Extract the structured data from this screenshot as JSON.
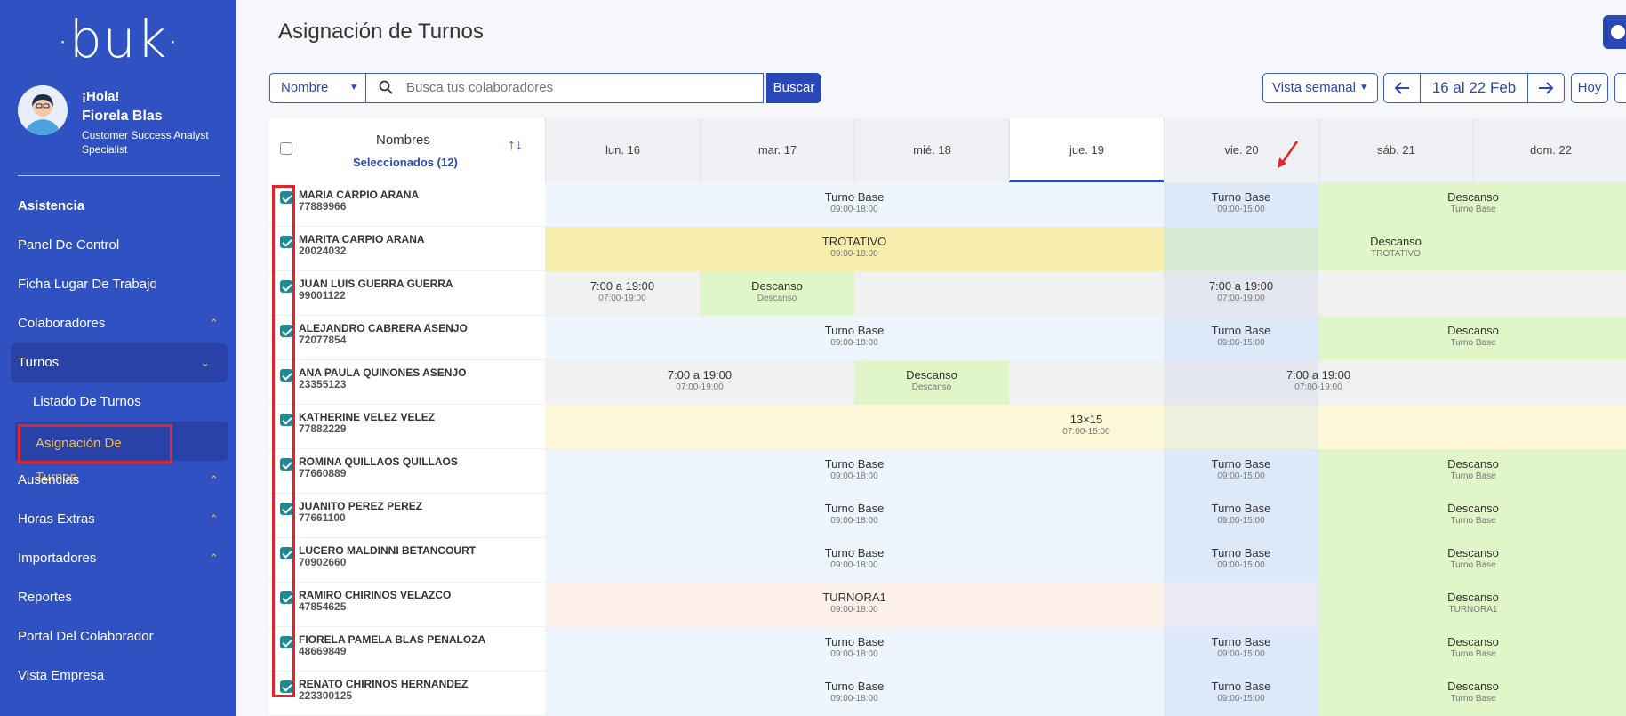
{
  "sidebar": {
    "logo": "buk",
    "greeting": "¡Hola!",
    "user_name": "Fiorela Blas",
    "user_role": "Customer Success Analyst Specialist",
    "items": [
      {
        "label": "Asistencia"
      },
      {
        "label": "Panel De Control"
      },
      {
        "label": "Ficha Lugar De Trabajo"
      },
      {
        "label": "Colaboradores"
      },
      {
        "label": "Turnos"
      },
      {
        "label": "Listado De Turnos"
      },
      {
        "label": "Asignación De Turnos"
      },
      {
        "label": "Ausencias"
      },
      {
        "label": "Horas Extras"
      },
      {
        "label": "Importadores"
      },
      {
        "label": "Reportes"
      },
      {
        "label": "Portal Del Colaborador"
      },
      {
        "label": "Vista Empresa"
      }
    ]
  },
  "header": {
    "title": "Asignación de Turnos"
  },
  "toolbar": {
    "filter_select": "Nombre",
    "search_placeholder": "Busca tus colaboradores",
    "search_button": "Buscar",
    "view_select": "Vista semanal",
    "date_range": "16 al 22 Feb",
    "today_button": "Hoy"
  },
  "grid": {
    "names_header": "Nombres",
    "selected_label": "Seleccionados (12)",
    "sort_icon": "↑↓",
    "days": [
      "lun. 16",
      "mar. 17",
      "mié. 18",
      "jue. 19",
      "vie. 20",
      "sáb. 21",
      "dom. 22"
    ],
    "today": "jue. 19",
    "rows": [
      {
        "name": "MARIA CARPIO ARANA",
        "id": "77889966",
        "blocks": [
          {
            "from": 0,
            "span": 4,
            "label": "Turno Base",
            "sub": "09:00-18:00",
            "color": "#eef5fd"
          },
          {
            "from": 4,
            "span": 1,
            "label": "Turno Base",
            "sub": "09:00-15:00",
            "color": "#dde9f9"
          },
          {
            "from": 5,
            "span": 2,
            "label": "Descanso",
            "sub": "Turno Base",
            "color": "#e0f6c8"
          }
        ]
      },
      {
        "name": "MARITA CARPIO ARANA",
        "id": "20024032",
        "blocks": [
          {
            "from": 0,
            "span": 4,
            "label": "TROTATIVO",
            "sub": "09:00-18:00",
            "color": "#f7eeae"
          },
          {
            "from": 4,
            "span": 1,
            "label": "",
            "sub": "",
            "color": "#d6ecd2"
          },
          {
            "from": 5,
            "span": 1,
            "label": "Descanso",
            "sub": "TROTATIVO",
            "color": "#e0f6c8"
          },
          {
            "from": 6,
            "span": 1,
            "label": "",
            "sub": "",
            "color": "#e0f6c8"
          }
        ]
      },
      {
        "name": "JUAN LUIS GUERRA GUERRA",
        "id": "99001122",
        "blocks": [
          {
            "from": 0,
            "span": 1,
            "label": "7:00 a 19:00",
            "sub": "07:00-19:00",
            "color": "#f1f1f1"
          },
          {
            "from": 1,
            "span": 1,
            "label": "Descanso",
            "sub": "Descanso",
            "color": "#e0f6c8"
          },
          {
            "from": 2,
            "span": 2,
            "label": "",
            "sub": "",
            "color": "#f1f1f1"
          },
          {
            "from": 4,
            "span": 1,
            "label": "7:00 a 19:00",
            "sub": "07:00-19:00",
            "color": "#e5e7ee"
          },
          {
            "from": 5,
            "span": 2,
            "label": "",
            "sub": "",
            "color": "#f1f1f1"
          }
        ]
      },
      {
        "name": "ALEJANDRO CABRERA ASENJO",
        "id": "72077854",
        "blocks": [
          {
            "from": 0,
            "span": 4,
            "label": "Turno Base",
            "sub": "09:00-18:00",
            "color": "#eef5fd"
          },
          {
            "from": 4,
            "span": 1,
            "label": "Turno Base",
            "sub": "09:00-15:00",
            "color": "#dde9f9"
          },
          {
            "from": 5,
            "span": 2,
            "label": "Descanso",
            "sub": "Turno Base",
            "color": "#e0f6c8"
          }
        ]
      },
      {
        "name": "ANA PAULA QUINONES ASENJO",
        "id": "23355123",
        "blocks": [
          {
            "from": 0,
            "span": 2,
            "label": "7:00 a 19:00",
            "sub": "07:00-19:00",
            "color": "#f1f1f1"
          },
          {
            "from": 2,
            "span": 1,
            "label": "Descanso",
            "sub": "Descanso",
            "color": "#e0f6c8"
          },
          {
            "from": 3,
            "span": 1,
            "label": "",
            "sub": "",
            "color": "#f1f1f1"
          },
          {
            "from": 4,
            "span": 1,
            "label": "",
            "sub": "",
            "color": "#e5e7ee"
          },
          {
            "from": 5,
            "span": 2,
            "label": "",
            "sub": "",
            "color": "#f1f1f1"
          },
          {
            "from": 4,
            "span": 2,
            "label": "7:00 a 19:00",
            "sub": "07:00-19:00",
            "color": "transparent"
          }
        ]
      },
      {
        "name": "KATHERINE VELEZ VELEZ",
        "id": "77882229",
        "blocks": [
          {
            "from": 0,
            "span": 4,
            "label": "",
            "sub": "",
            "color": "#fdf8d8"
          },
          {
            "from": 3,
            "span": 1,
            "label": "13×15",
            "sub": "07:00-15:00",
            "color": "#fdf8d8"
          },
          {
            "from": 4,
            "span": 1,
            "label": "",
            "sub": "",
            "color": "#ecf0dc"
          },
          {
            "from": 5,
            "span": 2,
            "label": "",
            "sub": "",
            "color": "#fdf8d8"
          }
        ]
      },
      {
        "name": "ROMINA QUILLAOS QUILLAOS",
        "id": "77660889",
        "blocks": [
          {
            "from": 0,
            "span": 4,
            "label": "Turno Base",
            "sub": "09:00-18:00",
            "color": "#eef5fd"
          },
          {
            "from": 4,
            "span": 1,
            "label": "Turno Base",
            "sub": "09:00-15:00",
            "color": "#dde9f9"
          },
          {
            "from": 5,
            "span": 2,
            "label": "Descanso",
            "sub": "Turno Base",
            "color": "#e0f6c8"
          }
        ]
      },
      {
        "name": "JUANITO PEREZ PEREZ",
        "id": "77661100",
        "blocks": [
          {
            "from": 0,
            "span": 4,
            "label": "Turno Base",
            "sub": "09:00-18:00",
            "color": "#eef5fd"
          },
          {
            "from": 4,
            "span": 1,
            "label": "Turno Base",
            "sub": "09:00-15:00",
            "color": "#dde9f9"
          },
          {
            "from": 5,
            "span": 2,
            "label": "Descanso",
            "sub": "Turno Base",
            "color": "#e0f6c8"
          }
        ]
      },
      {
        "name": "LUCERO MALDINNI BETANCOURT",
        "id": "70902660",
        "blocks": [
          {
            "from": 0,
            "span": 4,
            "label": "Turno Base",
            "sub": "09:00-18:00",
            "color": "#eef5fd"
          },
          {
            "from": 4,
            "span": 1,
            "label": "Turno Base",
            "sub": "09:00-15:00",
            "color": "#dde9f9"
          },
          {
            "from": 5,
            "span": 2,
            "label": "Descanso",
            "sub": "Turno Base",
            "color": "#e0f6c8"
          }
        ]
      },
      {
        "name": "RAMIRO CHIRINOS VELAZCO",
        "id": "47854625",
        "blocks": [
          {
            "from": 0,
            "span": 4,
            "label": "TURNORA1",
            "sub": "09:00-18:00",
            "color": "#fdf1ea"
          },
          {
            "from": 4,
            "span": 1,
            "label": "",
            "sub": "",
            "color": "#ebe9f3"
          },
          {
            "from": 5,
            "span": 2,
            "label": "Descanso",
            "sub": "TURNORA1",
            "color": "#e0f6c8"
          }
        ]
      },
      {
        "name": "FIORELA PAMELA BLAS PENALOZA",
        "id": "48669849",
        "blocks": [
          {
            "from": 0,
            "span": 4,
            "label": "Turno Base",
            "sub": "09:00-18:00",
            "color": "#eef5fd"
          },
          {
            "from": 4,
            "span": 1,
            "label": "Turno Base",
            "sub": "09:00-15:00",
            "color": "#dde9f9"
          },
          {
            "from": 5,
            "span": 2,
            "label": "Descanso",
            "sub": "Turno Base",
            "color": "#e0f6c8"
          }
        ]
      },
      {
        "name": "RENATO CHIRINOS HERNANDEZ",
        "id": "223300125",
        "blocks": [
          {
            "from": 0,
            "span": 4,
            "label": "Turno Base",
            "sub": "09:00-18:00",
            "color": "#eef5fd"
          },
          {
            "from": 4,
            "span": 1,
            "label": "Turno Base",
            "sub": "09:00-15:00",
            "color": "#dde9f9"
          },
          {
            "from": 5,
            "span": 2,
            "label": "Descanso",
            "sub": "Turno Base",
            "color": "#e0f6c8"
          }
        ]
      }
    ]
  },
  "colors": {
    "sidebar": "#3051c2",
    "accent": "#2a47b8",
    "highlight": "#e0262b",
    "active_text": "#f5c04a"
  }
}
